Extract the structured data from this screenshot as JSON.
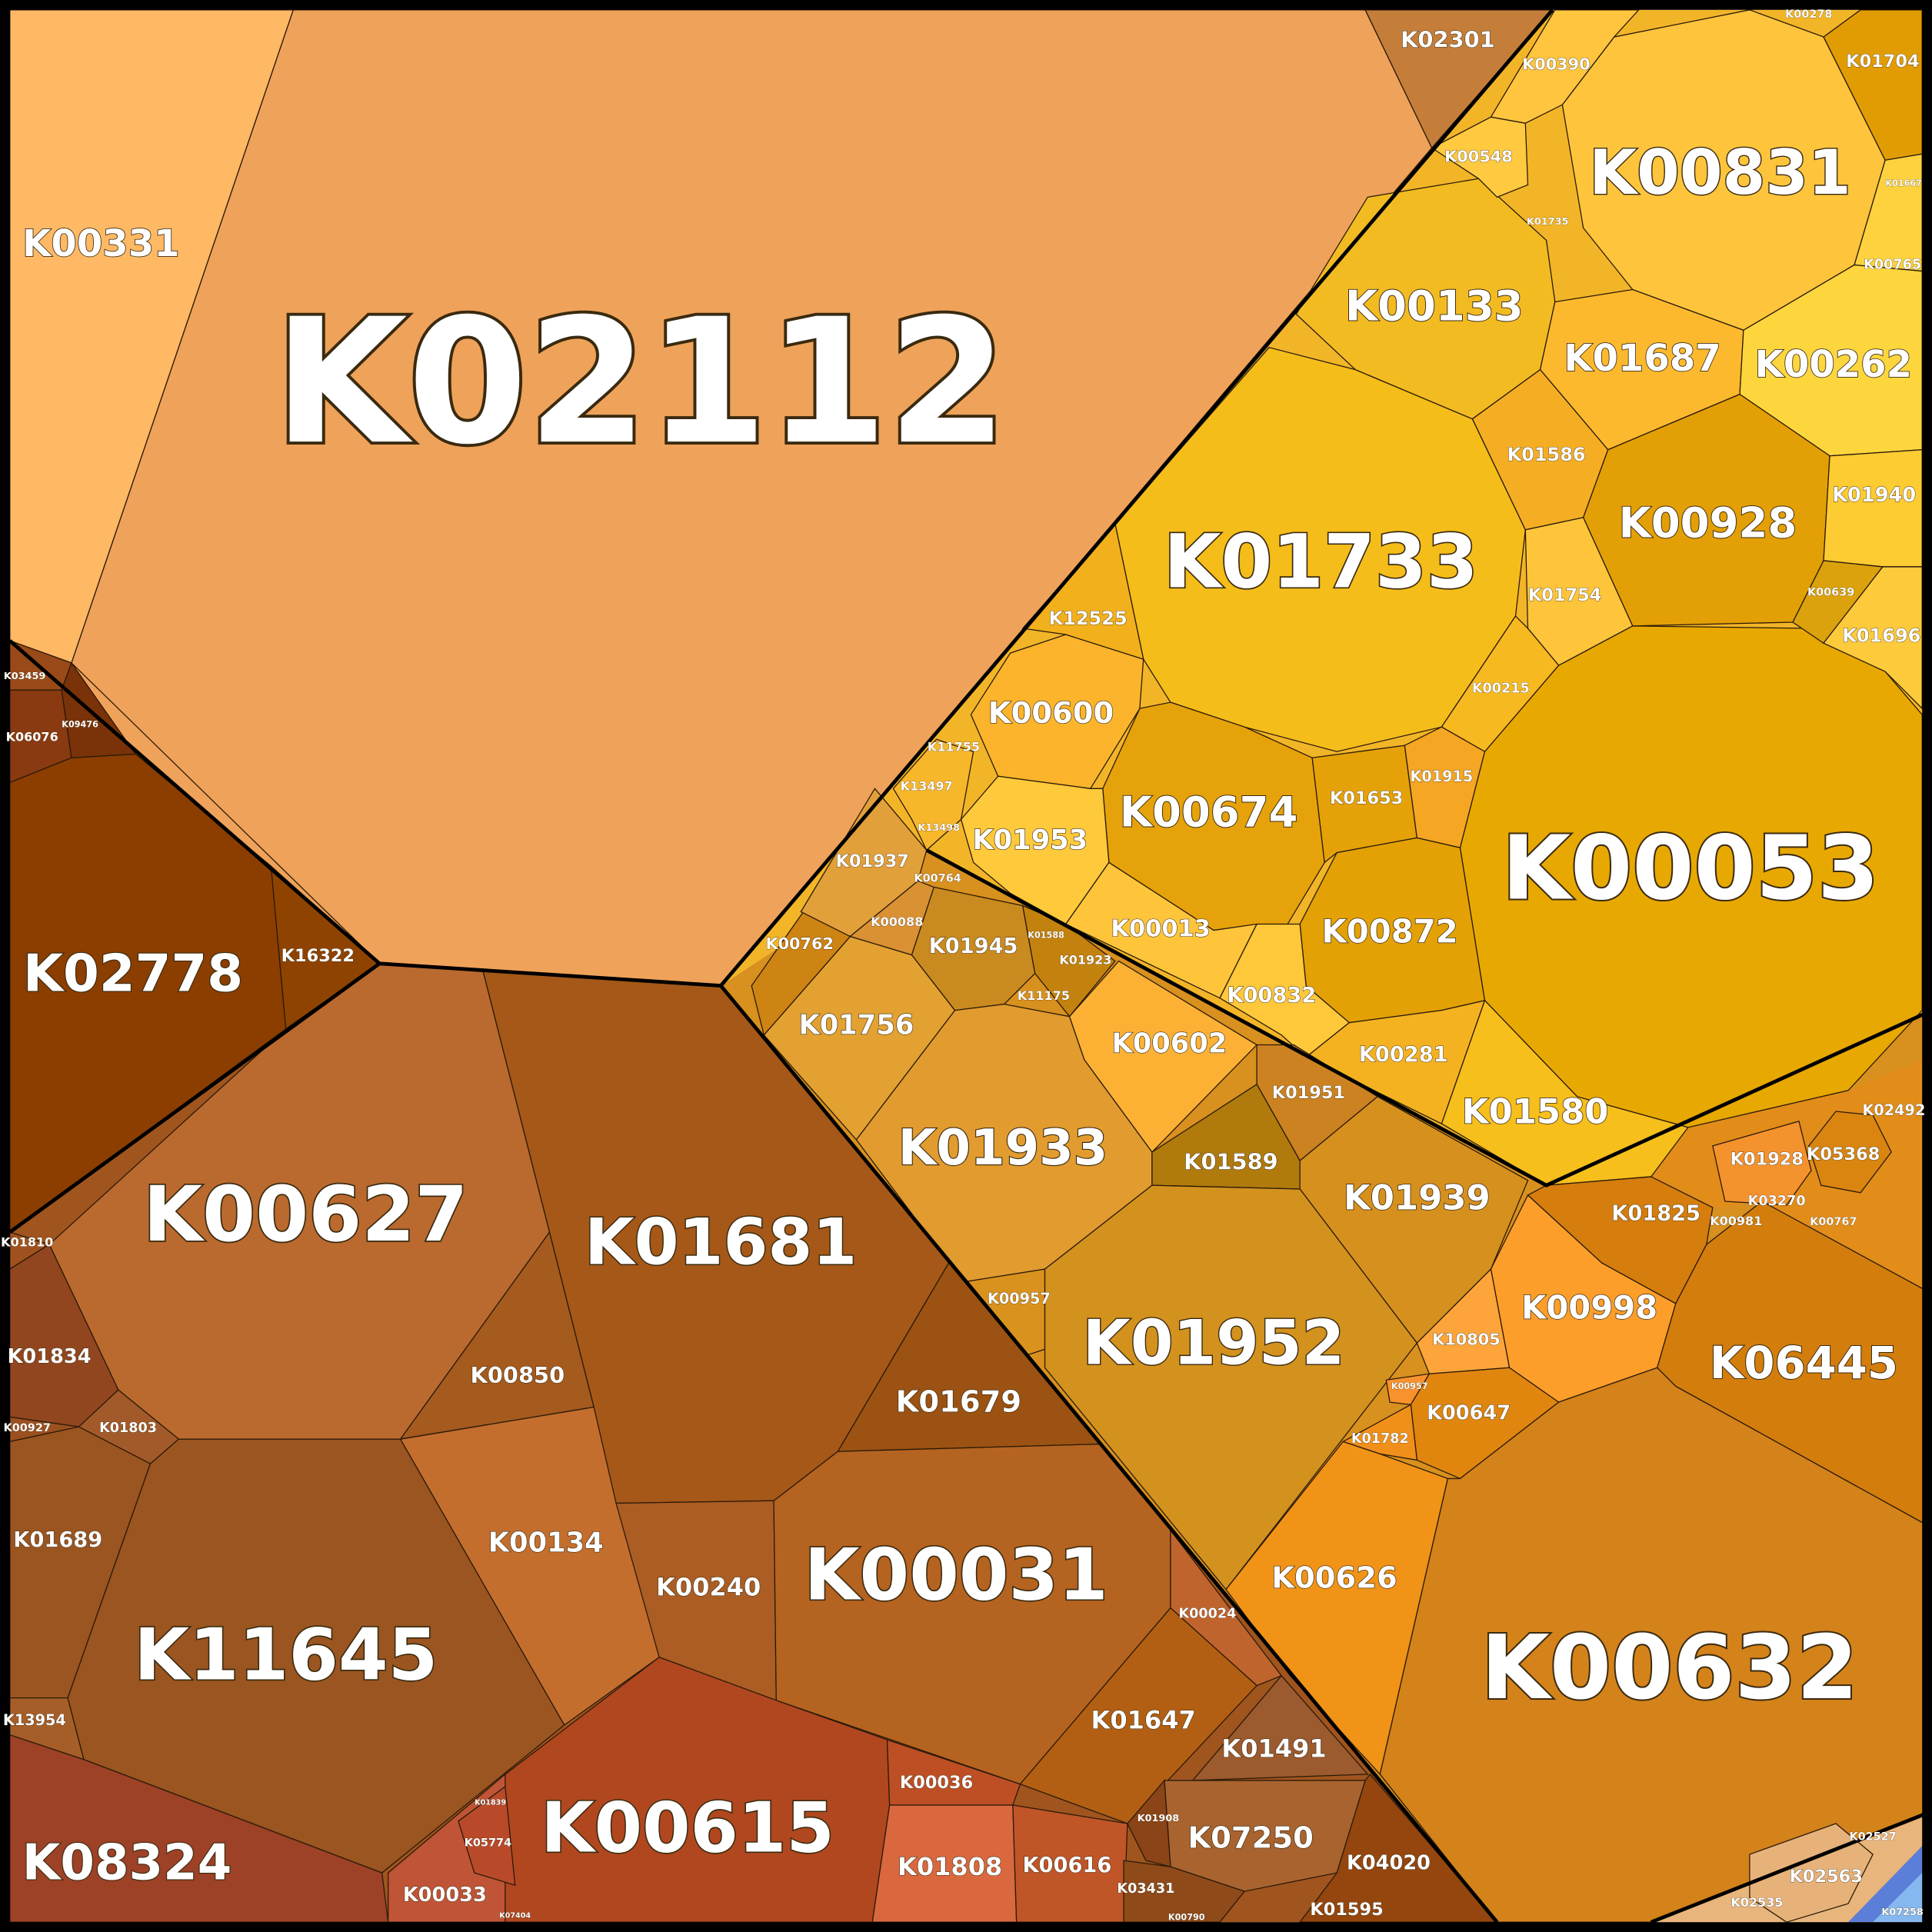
{
  "cells": [
    "K02112",
    "K00331",
    "K02301",
    "K02778",
    "K16322",
    "K06076",
    "K03459",
    "K09476",
    "K00627",
    "K01810",
    "K01834",
    "K01803",
    "K00927",
    "K01689",
    "K13954",
    "K11645",
    "K08324",
    "K00850",
    "K00134",
    "K01681",
    "K01679",
    "K00240",
    "K00031",
    "K00024",
    "K01647",
    "K00615",
    "K00036",
    "K01808",
    "K00616",
    "K00033",
    "K05774",
    "K01839",
    "K07404",
    "K01491",
    "K07250",
    "K04020",
    "K01595",
    "K03431",
    "K01908",
    "K00790",
    "K00053",
    "K00831",
    "K01733",
    "K00133",
    "K01687",
    "K00262",
    "K01586",
    "K00928",
    "K01940",
    "K00639",
    "K01696",
    "K01754",
    "K00215",
    "K00390",
    "K00548",
    "K01704",
    "K00278",
    "K00765",
    "K01667",
    "K01735",
    "K00600",
    "K12525",
    "K00674",
    "K01653",
    "K01915",
    "K00872",
    "K01953",
    "K00013",
    "K00832",
    "K00281",
    "K01580",
    "K01756",
    "K00762",
    "K01937",
    "K00088",
    "K01945",
    "K01923",
    "K11175",
    "K01588",
    "K00764",
    "K11755",
    "K13497",
    "K13498",
    "K01933",
    "K00957",
    "K00602",
    "K01951",
    "K01589",
    "K01939",
    "K01952",
    "K01825",
    "K00998",
    "K10805",
    "K00957",
    "K00647",
    "K01782",
    "K00626",
    "K00632",
    "K06445",
    "K00981",
    "K01928",
    "K05368",
    "K03270",
    "K02492",
    "K00767",
    "K02563",
    "K02527",
    "K02535",
    "K07258"
  ]
}
